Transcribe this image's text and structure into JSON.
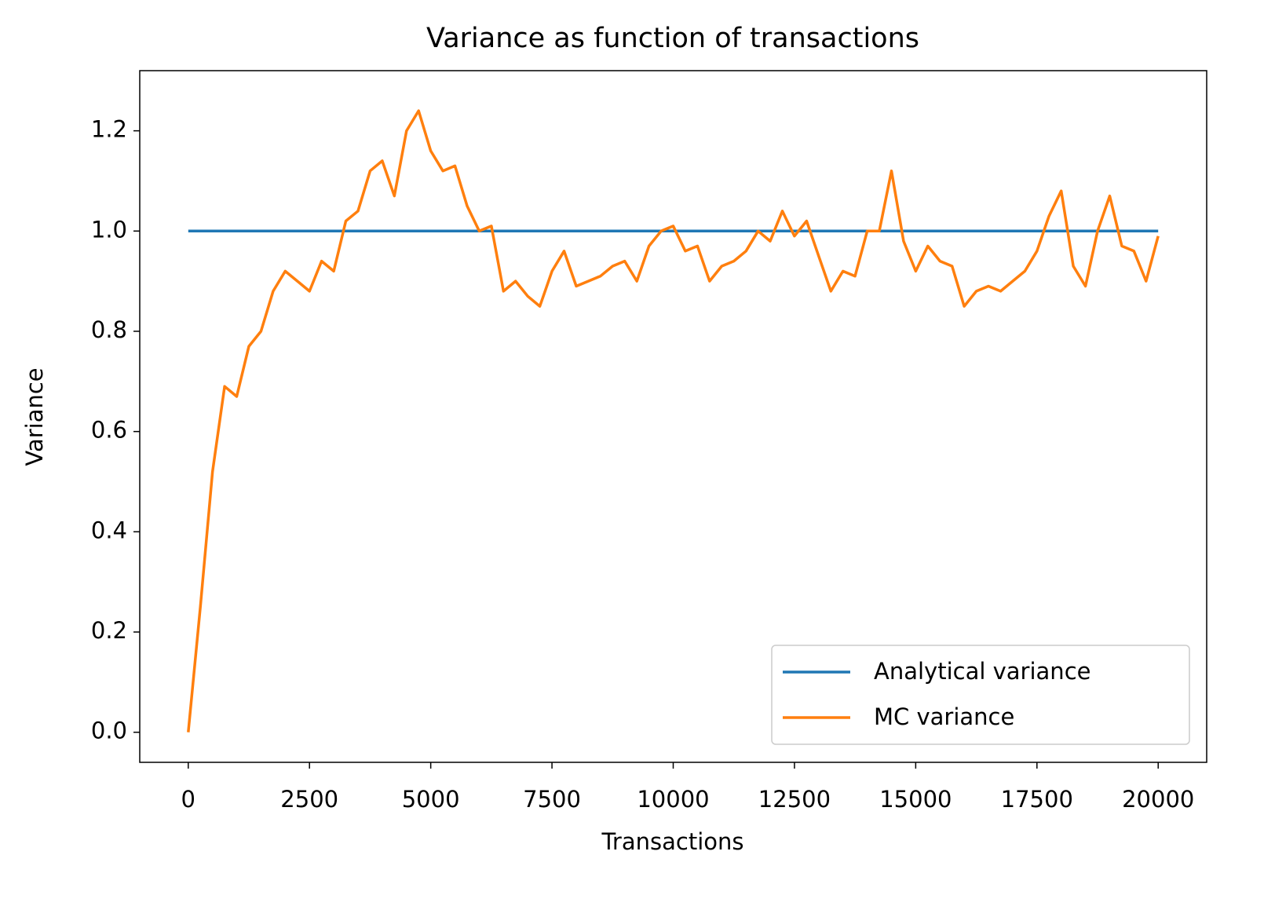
{
  "chart_data": {
    "type": "line",
    "title": "Variance as function of transactions",
    "x_label": "Transactions",
    "y_label": "Variance",
    "xlim": [
      -1000,
      21000
    ],
    "xticks": [
      0,
      2500,
      5000,
      7500,
      10000,
      12500,
      15000,
      17500,
      20000
    ],
    "ylim": [
      -0.06,
      1.32
    ],
    "yticks": [
      {
        "value": 0,
        "label": "0.0"
      },
      0.2,
      0.4,
      0.6,
      0.8,
      {
        "value": 1,
        "label": "1.0"
      },
      1.2
    ],
    "grid": false,
    "legend": "lower right",
    "series": [
      {
        "name": "Analytical variance",
        "color": "#1f77b4",
        "x": [
          0,
          20000
        ],
        "values": [
          1,
          1
        ]
      },
      {
        "name": "MC variance",
        "color": "#ff7f0e",
        "x": [
          0,
          250,
          500,
          750,
          1000,
          1250,
          1500,
          1750,
          2000,
          2250,
          2500,
          2750,
          3000,
          3250,
          3500,
          3750,
          4000,
          4250,
          4500,
          4750,
          5000,
          5250,
          5500,
          5750,
          6000,
          6250,
          6500,
          6750,
          7000,
          7250,
          7500,
          7750,
          8000,
          8250,
          8500,
          8750,
          9000,
          9250,
          9500,
          9750,
          10000,
          10250,
          10500,
          10750,
          11000,
          11250,
          11500,
          11750,
          12000,
          12250,
          12500,
          12750,
          13000,
          13250,
          13500,
          13750,
          14000,
          14250,
          14500,
          14750,
          15000,
          15250,
          15500,
          15750,
          16000,
          16250,
          16500,
          16750,
          17000,
          17250,
          17500,
          17750,
          18000,
          18250,
          18500,
          18750,
          19000,
          19250,
          19500,
          19750,
          20000
        ],
        "values": [
          0,
          0.25,
          0.52,
          0.69,
          0.67,
          0.77,
          0.8,
          0.88,
          0.92,
          0.9,
          0.88,
          0.94,
          0.92,
          1.02,
          1.04,
          1.12,
          1.14,
          1.07,
          1.2,
          1.24,
          1.16,
          1.12,
          1.13,
          1.05,
          1.0,
          1.01,
          0.88,
          0.9,
          0.87,
          0.85,
          0.92,
          0.96,
          0.89,
          0.9,
          0.91,
          0.93,
          0.94,
          0.9,
          0.97,
          1.0,
          1.01,
          0.96,
          0.97,
          0.9,
          0.93,
          0.94,
          0.96,
          1.0,
          0.98,
          1.04,
          0.99,
          1.02,
          0.95,
          0.88,
          0.92,
          0.91,
          1.0,
          1.0,
          1.12,
          0.98,
          0.92,
          0.97,
          0.94,
          0.93,
          0.85,
          0.88,
          0.89,
          0.88,
          0.9,
          0.92,
          0.96,
          1.03,
          1.08,
          0.93,
          0.89,
          1.0,
          1.07,
          0.97,
          0.96,
          0.9,
          0.99
        ]
      }
    ]
  }
}
